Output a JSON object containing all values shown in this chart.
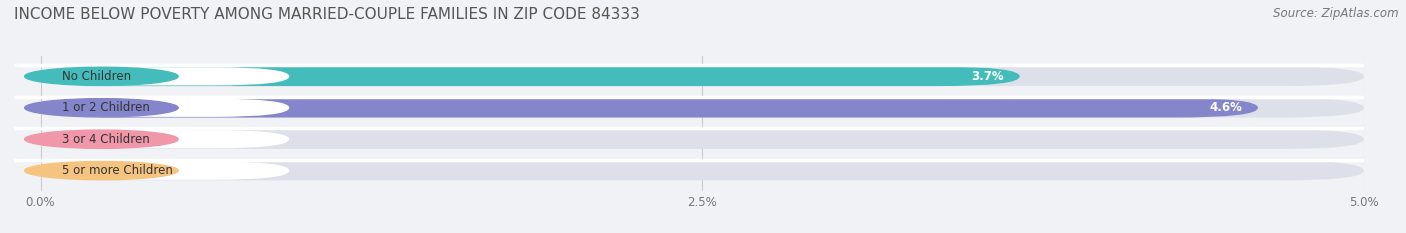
{
  "title": "INCOME BELOW POVERTY AMONG MARRIED-COUPLE FAMILIES IN ZIP CODE 84333",
  "source": "Source: ZipAtlas.com",
  "categories": [
    "No Children",
    "1 or 2 Children",
    "3 or 4 Children",
    "5 or more Children"
  ],
  "values": [
    3.7,
    4.6,
    0.0,
    0.0
  ],
  "bar_colors": [
    "#45BCBC",
    "#8585CC",
    "#F097AA",
    "#F5C480"
  ],
  "xlim": [
    0,
    5.0
  ],
  "xticklabels": [
    "0.0%",
    "2.5%",
    "5.0%"
  ],
  "xtick_positions": [
    0.0,
    2.5,
    5.0
  ],
  "background_color": "#f0f2f5",
  "bar_background_color": "#dde0e8",
  "bar_separator_color": "#ffffff",
  "title_fontsize": 11,
  "source_fontsize": 8.5,
  "label_fontsize": 8.5,
  "value_fontsize": 8.5,
  "bar_height": 0.62,
  "label_pill_color": "#ffffff"
}
